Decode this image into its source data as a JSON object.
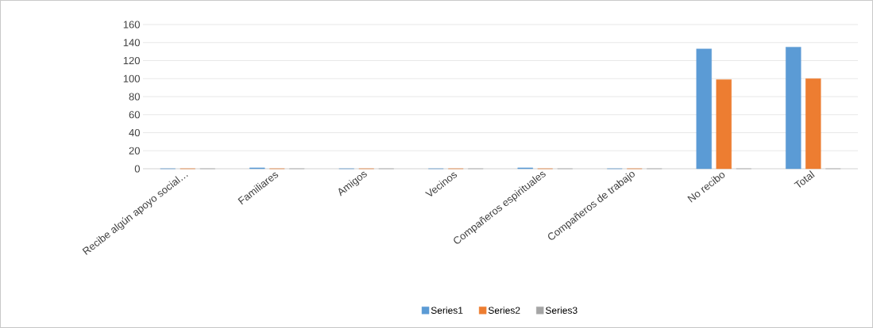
{
  "chart_data": {
    "type": "bar",
    "categories": [
      "Recibe algún apoyo social…",
      "Familiares",
      "Amigos",
      "Vecinos",
      "Compañeros espirituales",
      "Compañeros de trabajo",
      "No recibo",
      "Total"
    ],
    "series": [
      {
        "name": "Series1",
        "color": "#5b9bd5",
        "values": [
          0,
          1,
          0,
          0,
          1,
          0,
          133,
          135
        ]
      },
      {
        "name": "Series2",
        "color": "#ed7d31",
        "values": [
          0,
          0,
          0,
          0,
          0,
          0,
          99,
          100
        ]
      },
      {
        "name": "Series3",
        "color": "#a5a5a5",
        "values": [
          0,
          0,
          0,
          0,
          0,
          0,
          0,
          0
        ]
      }
    ],
    "ylim": [
      0,
      160
    ],
    "yticks": [
      0,
      20,
      40,
      60,
      80,
      100,
      120,
      140,
      160
    ],
    "grid": "y",
    "legend": "bottom"
  }
}
